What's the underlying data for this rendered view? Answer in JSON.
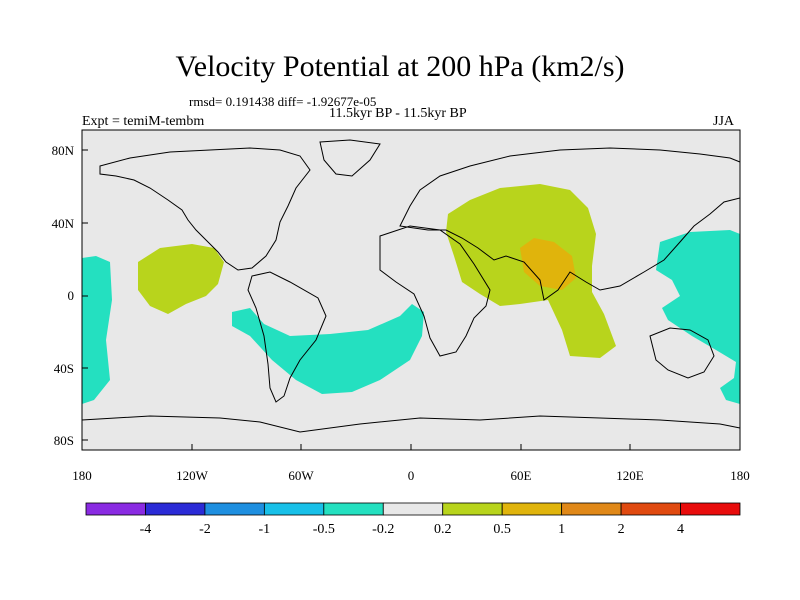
{
  "title": "Velocity Potential at 200 hPa (km2/s)",
  "stats": "rmsd= 0.191438 diff= -1.92677e-05",
  "subtitle": "11.5kyr BP - 11.5kyr BP",
  "left_label": "Expt = temiM-tembm",
  "right_label": "JJA",
  "y_ticks": [
    "80N",
    "40N",
    "0",
    "40S",
    "80S"
  ],
  "x_ticks": [
    "180",
    "120W",
    "60W",
    "0",
    "60E",
    "120E",
    "180"
  ],
  "colorbar": {
    "colors": [
      "#8a2be2",
      "#2b2bd6",
      "#1e8fe0",
      "#18c0e8",
      "#24e0c0",
      "#e8e8e8",
      "#b8d41c",
      "#e0b40c",
      "#e08818",
      "#e04a10",
      "#e80c0c"
    ],
    "labels": [
      "-4",
      "-2",
      "-1",
      "-0.5",
      "-0.2",
      "0.2",
      "0.5",
      "1",
      "2",
      "4"
    ]
  },
  "fill_colors": {
    "background": "#e8e8e8",
    "negative": "#24e0c0",
    "positive": "#b8d41c",
    "positive_strong": "#e0b40c"
  }
}
